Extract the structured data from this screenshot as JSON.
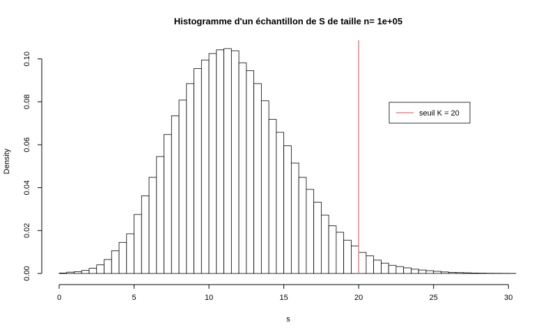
{
  "chart_data": {
    "type": "bar",
    "title": "Histogramme d'un échantillon de S de taille n= 1e+05",
    "xlabel": "s",
    "ylabel": "Density",
    "bin_width": 0.5,
    "bin_start": 0,
    "xlim": [
      0,
      30.5
    ],
    "ylim": [
      0,
      0.108
    ],
    "xticks": [
      0,
      5,
      10,
      15,
      20,
      25,
      30
    ],
    "yticks": [
      0.0,
      0.02,
      0.04,
      0.06,
      0.08,
      0.1
    ],
    "ytick_labels": [
      "0.00",
      "0.02",
      "0.04",
      "0.06",
      "0.08",
      "0.10"
    ],
    "values": [
      0.0002,
      0.0006,
      0.0008,
      0.0014,
      0.0024,
      0.004,
      0.0065,
      0.0106,
      0.0145,
      0.0185,
      0.0275,
      0.0362,
      0.0448,
      0.0545,
      0.0648,
      0.0735,
      0.0808,
      0.0885,
      0.0955,
      0.0995,
      0.1025,
      0.1042,
      0.1048,
      0.1038,
      0.0982,
      0.0945,
      0.0885,
      0.0805,
      0.0718,
      0.0658,
      0.0595,
      0.0515,
      0.0448,
      0.0392,
      0.0332,
      0.0272,
      0.0222,
      0.0192,
      0.0155,
      0.0128,
      0.0098,
      0.0082,
      0.0062,
      0.0048,
      0.0038,
      0.0032,
      0.0026,
      0.002,
      0.0016,
      0.0013,
      0.001,
      0.0007,
      0.0005,
      0.0004,
      0.0003,
      0.0002,
      0.00015,
      0.0001,
      8e-05,
      6e-05,
      4e-05
    ],
    "threshold": {
      "x": 20,
      "color": "#f08080"
    },
    "legend": {
      "text": "seuil K =  20",
      "color": "#f08080",
      "placement": "top-right"
    }
  }
}
